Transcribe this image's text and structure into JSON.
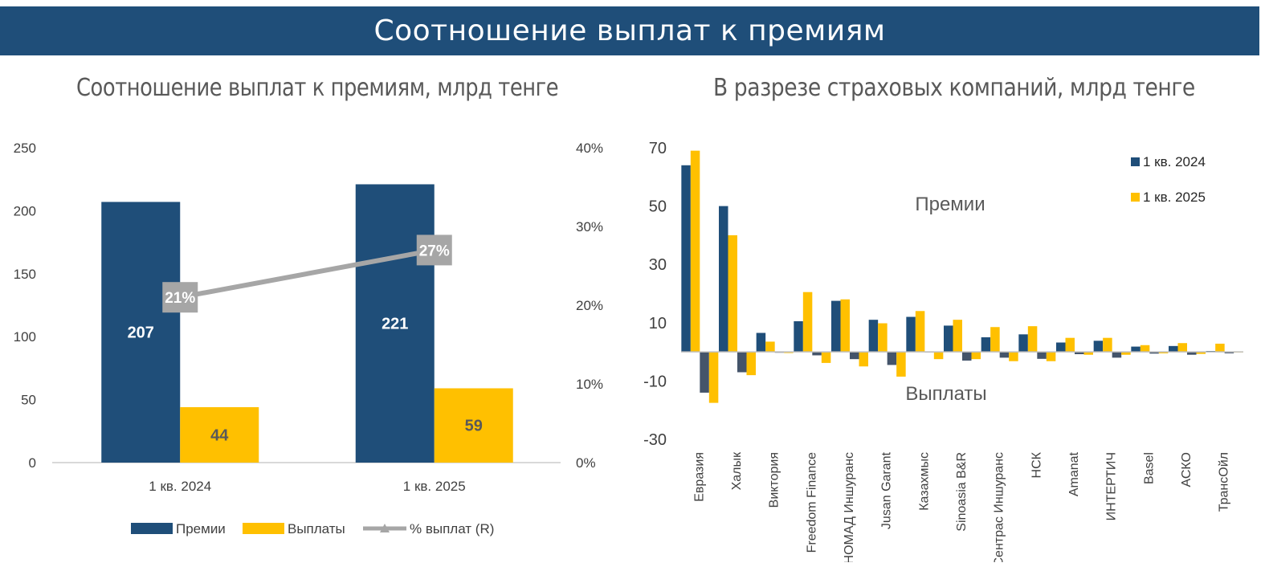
{
  "header": {
    "title": "Соотношение выплат к премиям"
  },
  "charts": {
    "left_title": "Соотношение выплат к премиям, млрд тенге",
    "right_title": "В разрезе страховых компаний, млрд тенге"
  },
  "chart_data": [
    {
      "type": "bar",
      "title": "Соотношение выплат к премиям, млрд тенге",
      "categories": [
        "1 кв. 2024",
        "1 кв. 2025"
      ],
      "series": [
        {
          "name": "Премии",
          "values": [
            207,
            221
          ],
          "color": "#1f4e79",
          "labels": [
            "207",
            "221"
          ]
        },
        {
          "name": "Выплаты",
          "values": [
            44,
            59
          ],
          "color": "#ffc000",
          "labels": [
            "44",
            "59"
          ]
        },
        {
          "name": "% выплат (R)",
          "type": "line",
          "axis": "right",
          "values": [
            21,
            27
          ],
          "color": "#a6a6a6",
          "labels": [
            "21%",
            "27%"
          ]
        }
      ],
      "ylim": [
        0,
        250
      ],
      "yticks": [
        "0",
        "50",
        "100",
        "150",
        "200",
        "250"
      ],
      "y2lim": [
        0,
        40
      ],
      "y2ticks": [
        "0%",
        "10%",
        "20%",
        "30%",
        "40%"
      ],
      "legend": "bottom"
    },
    {
      "type": "bar",
      "title": "В разрезе страховых компаний, млрд тенге",
      "categories": [
        "Евразия",
        "Халык",
        "Виктория",
        "Freedom Finance",
        "НОМАД Иншуранс",
        "Jusan Garant",
        "Казахмыс",
        "Sinoasia B&R",
        "Сентрас Иншуранс",
        "НСК",
        "Amanat",
        "ИНТЕРТИЧ",
        "Basel",
        "АСКО",
        "ТрансОйл"
      ],
      "series": [
        {
          "name": "1 кв. 2024",
          "color": "#1f4e79",
          "premiums": [
            64,
            50,
            6.5,
            10.5,
            17.5,
            11,
            12,
            9,
            5,
            6,
            3.2,
            3.8,
            1.8,
            2,
            0.3
          ],
          "payouts": [
            -14,
            -7,
            -0.3,
            -1.2,
            -2.5,
            -4.5,
            -0.2,
            -3,
            -2,
            -2.4,
            -0.8,
            -2,
            -0.6,
            -1,
            -0.5
          ]
        },
        {
          "name": "1 кв. 2025",
          "color": "#ffc000",
          "premiums": [
            69,
            40,
            3.5,
            20.5,
            18,
            9.8,
            14,
            11,
            8.5,
            8.8,
            4.8,
            4.8,
            2.3,
            3,
            2.8
          ],
          "payouts": [
            -17.5,
            -8,
            -0.4,
            -3.8,
            -5,
            -8.5,
            -2.5,
            -2.5,
            -3.2,
            -3.2,
            -1,
            -1,
            -0.5,
            -0.7,
            -0.2
          ]
        }
      ],
      "annotations": [
        "Премии",
        "Выплаты"
      ],
      "ylim": [
        -30,
        70
      ],
      "yticks": [
        "-30",
        "-10",
        "10",
        "30",
        "50",
        "70"
      ],
      "legend": "top-right"
    }
  ]
}
